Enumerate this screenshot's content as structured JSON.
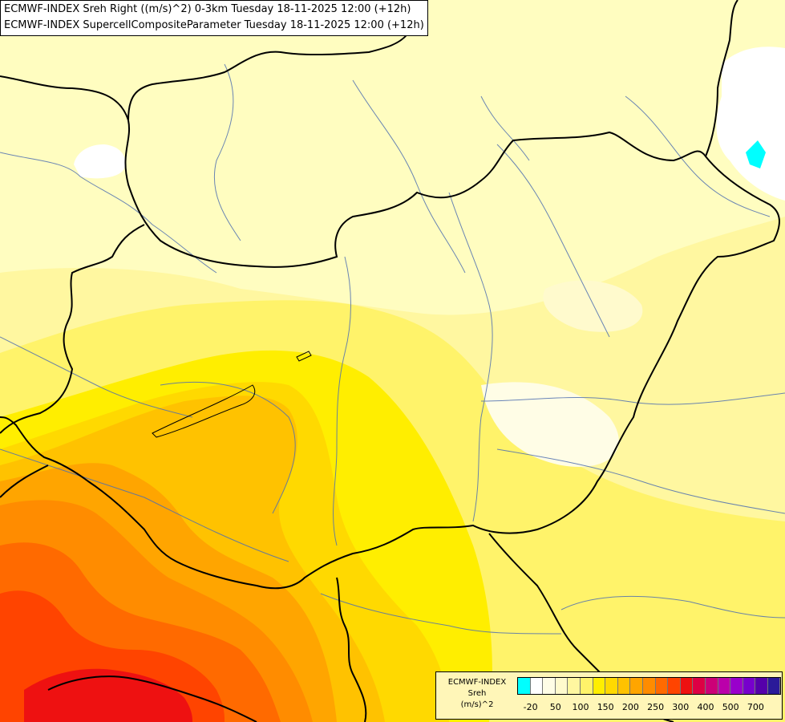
{
  "titles": {
    "line1": "ECMWF-INDEX Sreh Right ((m/s)^2) 0-3km Tuesday 18-11-2025 12:00 (+12h)",
    "line2": "ECMWF-INDEX SupercellCompositeParameter Tuesday 18-11-2025 12:00 (+12h)"
  },
  "legend": {
    "source": "ECMWF-INDEX",
    "variable": "Sreh",
    "unit": "(m/s)^2",
    "colors": [
      "#00ffff",
      "#ffffff",
      "#fffde6",
      "#fffacd",
      "#fff7a0",
      "#fff36a",
      "#ffee00",
      "#ffd900",
      "#ffc200",
      "#ffa500",
      "#ff8c00",
      "#ff6a00",
      "#ff4400",
      "#ee1111",
      "#dd0044",
      "#cc0077",
      "#bb00aa",
      "#9900cc",
      "#7700cc",
      "#5500aa",
      "#2a1a99"
    ],
    "labels": [
      "-20",
      "50",
      "100",
      "150",
      "200",
      "250",
      "300",
      "400",
      "500",
      "700"
    ]
  }
}
